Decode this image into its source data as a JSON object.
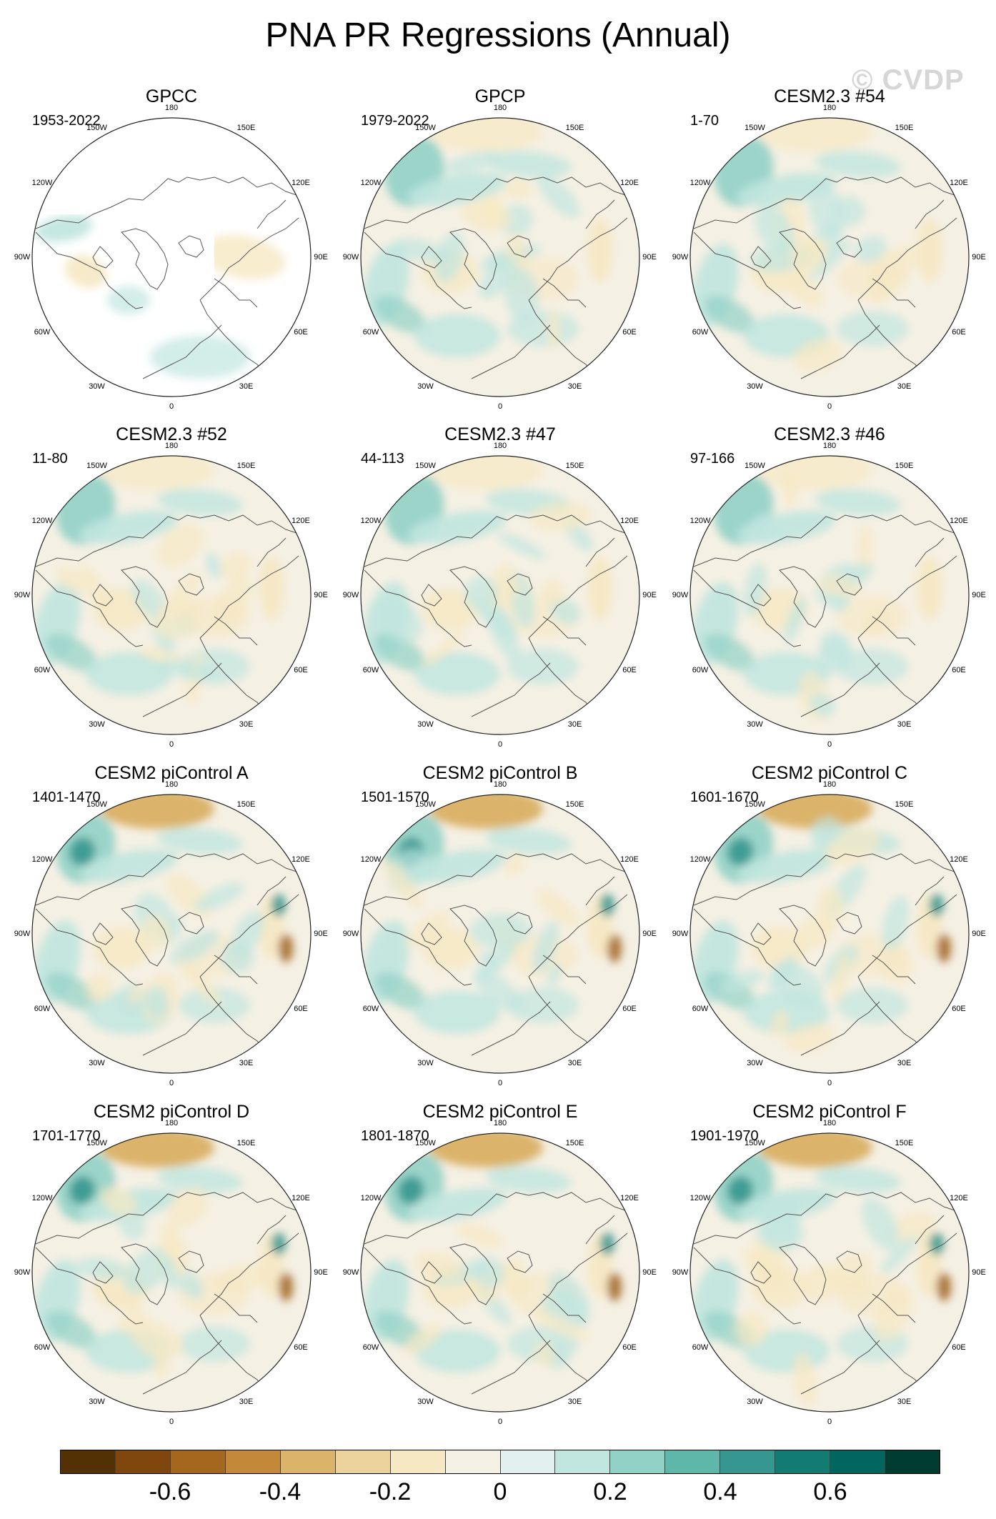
{
  "title": "PNA PR Regressions (Annual)",
  "watermark": "© CVDP",
  "longitude_labels": [
    "180",
    "150E",
    "120E",
    "90E",
    "60E",
    "30E",
    "0",
    "30W",
    "60W",
    "90W",
    "120W",
    "150W"
  ],
  "panels": [
    {
      "title": "GPCC",
      "period": "1953-2022",
      "land_only": true
    },
    {
      "title": "GPCP",
      "period": "1979-2022"
    },
    {
      "title": "CESM2.3 #54",
      "period": "1-70"
    },
    {
      "title": "CESM2.3 #52",
      "period": "11-80"
    },
    {
      "title": "CESM2.3 #47",
      "period": "44-113"
    },
    {
      "title": "CESM2.3 #46",
      "period": "97-166"
    },
    {
      "title": "CESM2 piControl A",
      "period": "1401-1470"
    },
    {
      "title": "CESM2 piControl B",
      "period": "1501-1570"
    },
    {
      "title": "CESM2 piControl C",
      "period": "1601-1670"
    },
    {
      "title": "CESM2 piControl D",
      "period": "1701-1770"
    },
    {
      "title": "CESM2 piControl E",
      "period": "1801-1870"
    },
    {
      "title": "CESM2 piControl F",
      "period": "1901-1970"
    }
  ],
  "colorbar": {
    "colors": [
      "#543005",
      "#7f470e",
      "#a4671d",
      "#c4883b",
      "#dbb36a",
      "#ecd39b",
      "#f6e8c3",
      "#f5f0e4",
      "#e2f1ef",
      "#c0e6df",
      "#92d2c6",
      "#5fb7aa",
      "#35978f",
      "#137c72",
      "#01665e",
      "#003c30"
    ],
    "labels": [
      "-0.6",
      "-0.4",
      "-0.2",
      "0",
      "0.2",
      "0.4",
      "0.6"
    ]
  },
  "colors": {
    "brown_strong": "#a4671d",
    "brown": "#dbb36a",
    "tan": "#f6e8c3",
    "neutral": "#f5f0e4",
    "teal_light": "#c0e6df",
    "teal": "#92d2c6",
    "teal_dark": "#35978f",
    "teal_deep": "#01665e"
  }
}
